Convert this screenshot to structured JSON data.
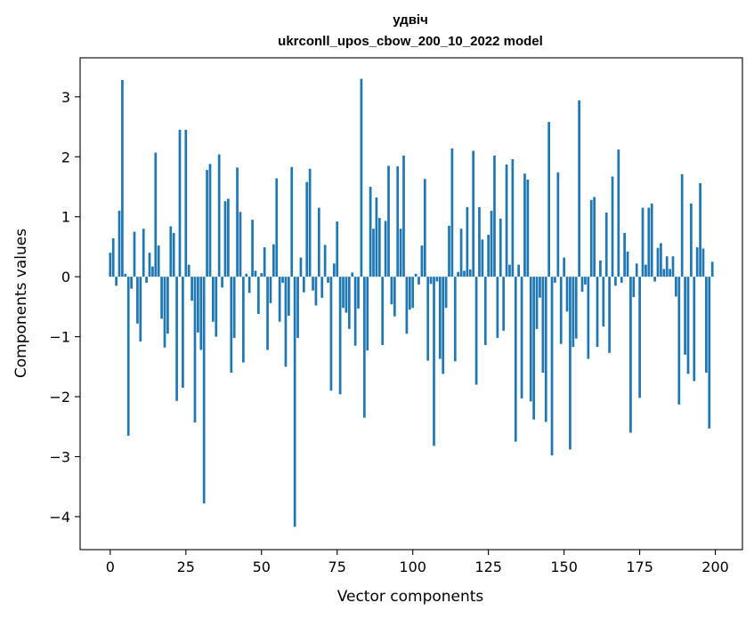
{
  "chart_data": {
    "type": "bar",
    "title": "удвіч",
    "subtitle": "ukrconll_upos_cbow_200_10_2022 model",
    "xlabel": "Vector components",
    "ylabel": "Components values",
    "xlim": [
      -9.95,
      208.95
    ],
    "ylim": [
      -4.55,
      3.65
    ],
    "xticks": [
      0,
      25,
      50,
      75,
      100,
      125,
      150,
      175,
      200
    ],
    "yticks": [
      -4,
      -3,
      -2,
      -1,
      0,
      1,
      2,
      3
    ],
    "bar_color": "#1f77b4",
    "grid": false,
    "x": [
      0,
      1,
      2,
      3,
      4,
      5,
      6,
      7,
      8,
      9,
      10,
      11,
      12,
      13,
      14,
      15,
      16,
      17,
      18,
      19,
      20,
      21,
      22,
      23,
      24,
      25,
      26,
      27,
      28,
      29,
      30,
      31,
      32,
      33,
      34,
      35,
      36,
      37,
      38,
      39,
      40,
      41,
      42,
      43,
      44,
      45,
      46,
      47,
      48,
      49,
      50,
      51,
      52,
      53,
      54,
      55,
      56,
      57,
      58,
      59,
      60,
      61,
      62,
      63,
      64,
      65,
      66,
      67,
      68,
      69,
      70,
      71,
      72,
      73,
      74,
      75,
      76,
      77,
      78,
      79,
      80,
      81,
      82,
      83,
      84,
      85,
      86,
      87,
      88,
      89,
      90,
      91,
      92,
      93,
      94,
      95,
      96,
      97,
      98,
      99,
      100,
      101,
      102,
      103,
      104,
      105,
      106,
      107,
      108,
      109,
      110,
      111,
      112,
      113,
      114,
      115,
      116,
      117,
      118,
      119,
      120,
      121,
      122,
      123,
      124,
      125,
      126,
      127,
      128,
      129,
      130,
      131,
      132,
      133,
      134,
      135,
      136,
      137,
      138,
      139,
      140,
      141,
      142,
      143,
      144,
      145,
      146,
      147,
      148,
      149,
      150,
      151,
      152,
      153,
      154,
      155,
      156,
      157,
      158,
      159,
      160,
      161,
      162,
      163,
      164,
      165,
      166,
      167,
      168,
      169,
      170,
      171,
      172,
      173,
      174,
      175,
      176,
      177,
      178,
      179,
      180,
      181,
      182,
      183,
      184,
      185,
      186,
      187,
      188,
      189,
      190,
      191,
      192,
      193,
      194,
      195,
      196,
      197,
      198,
      199
    ],
    "values": [
      0.4,
      0.64,
      -0.15,
      1.1,
      3.28,
      0.05,
      -2.65,
      -0.2,
      0.75,
      -0.78,
      -1.08,
      0.8,
      -0.1,
      0.4,
      0.17,
      2.07,
      0.52,
      -0.7,
      -1.18,
      -0.95,
      0.84,
      0.73,
      -2.07,
      2.45,
      -1.85,
      2.45,
      0.2,
      -0.4,
      -2.43,
      -0.93,
      -1.22,
      -3.78,
      1.78,
      1.88,
      -0.75,
      -1.0,
      2.04,
      -0.18,
      1.26,
      1.3,
      -1.6,
      -1.02,
      1.82,
      1.08,
      -1.43,
      0.05,
      -0.27,
      0.95,
      0.1,
      -0.62,
      0.06,
      0.49,
      -1.22,
      -0.44,
      0.54,
      1.64,
      -0.75,
      -0.1,
      -1.5,
      -0.65,
      1.83,
      -4.17,
      -1.02,
      0.32,
      -0.26,
      1.58,
      1.8,
      -0.23,
      -0.48,
      1.15,
      -0.35,
      0.53,
      -0.1,
      -1.9,
      0.22,
      0.92,
      -1.96,
      -0.52,
      -0.6,
      -0.87,
      0.07,
      -1.15,
      -0.53,
      3.3,
      -2.35,
      -1.23,
      1.5,
      0.8,
      1.32,
      0.98,
      -1.14,
      0.93,
      1.85,
      -0.46,
      -0.66,
      1.84,
      0.8,
      2.02,
      -0.95,
      -0.55,
      -0.52,
      0.05,
      -0.13,
      0.52,
      1.63,
      -1.4,
      -0.12,
      -2.82,
      -0.08,
      -1.37,
      -1.62,
      -0.52,
      0.85,
      2.14,
      -1.41,
      0.08,
      0.8,
      0.1,
      1.16,
      0.12,
      2.1,
      -1.8,
      1.16,
      0.62,
      -1.14,
      0.7,
      1.1,
      2.02,
      -1.02,
      0.97,
      -0.9,
      1.87,
      0.2,
      1.96,
      -2.75,
      0.2,
      -2.03,
      1.72,
      1.62,
      -2.08,
      -2.38,
      -0.87,
      -0.35,
      -1.6,
      -2.42,
      2.58,
      -2.98,
      -0.1,
      1.74,
      -1.12,
      0.32,
      -0.58,
      -2.88,
      -1.17,
      -1.03,
      2.94,
      -0.25,
      -0.13,
      -1.37,
      1.28,
      1.33,
      -1.17,
      0.27,
      -0.83,
      1.07,
      -1.27,
      1.67,
      -0.15,
      2.12,
      -0.1,
      0.73,
      0.42,
      -2.6,
      -0.34,
      0.22,
      -2.02,
      1.15,
      0.2,
      1.15,
      1.22,
      -0.08,
      0.48,
      0.56,
      0.13,
      0.34,
      0.13,
      0.34,
      -0.33,
      -2.13,
      1.71,
      -1.3,
      -1.62,
      1.22,
      -1.74,
      0.49,
      1.56,
      0.47,
      -1.6,
      -2.53,
      0.25
    ]
  }
}
